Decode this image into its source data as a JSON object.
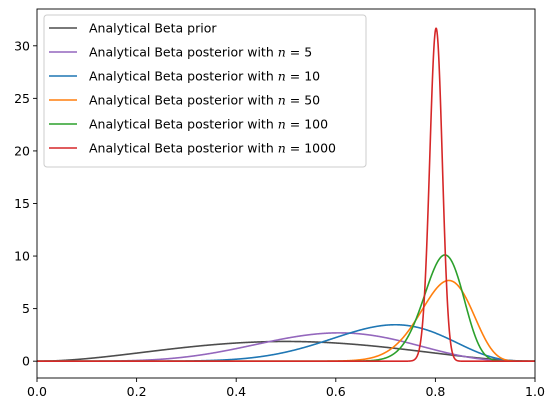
{
  "chart_data": {
    "type": "line",
    "title": "",
    "xlabel": "",
    "ylabel": "",
    "xlim": [
      0,
      1
    ],
    "ylim": [
      -1.6,
      33.5
    ],
    "xticks": [
      0.0,
      0.2,
      0.4,
      0.6,
      0.8,
      1.0
    ],
    "xtick_labels": [
      "0.0",
      "0.2",
      "0.4",
      "0.6",
      "0.8",
      "1.0"
    ],
    "yticks": [
      0,
      5,
      10,
      15,
      20,
      25,
      30
    ],
    "ytick_labels": [
      "0",
      "5",
      "10",
      "15",
      "20",
      "25",
      "30"
    ],
    "grid": false,
    "legend_position": "top-left",
    "series": [
      {
        "name": "Analytical Beta prior",
        "label_prefix": "Analytical Beta prior",
        "label_math": "",
        "color": "#4d4d4d",
        "distribution": "beta",
        "alpha": 3,
        "beta": 3
      },
      {
        "name": "Analytical Beta posterior with n = 5",
        "label_prefix": "Analytical Beta posterior with ",
        "label_math": "n = 5",
        "color": "#9467bd",
        "distribution": "beta",
        "alpha": 6.7,
        "beta": 4.7
      },
      {
        "name": "Analytical Beta posterior with n = 10",
        "label_prefix": "Analytical Beta posterior with ",
        "label_math": "n = 10",
        "color": "#1f77b4",
        "distribution": "beta",
        "alpha": 11,
        "beta": 4.9
      },
      {
        "name": "Analytical Beta posterior with n = 50",
        "label_prefix": "Analytical Beta posterior with ",
        "label_math": "n = 50",
        "color": "#ff7f0e",
        "distribution": "beta",
        "alpha": 44,
        "beta": 10
      },
      {
        "name": "Analytical Beta posterior with n = 100",
        "label_prefix": "Analytical Beta posterior with ",
        "label_math": "n = 100",
        "color": "#2ca02c",
        "distribution": "beta",
        "alpha": 78,
        "beta": 18
      },
      {
        "name": "Analytical Beta posterior with n = 1000",
        "label_prefix": "Analytical Beta posterior with ",
        "label_math": "n = 1000",
        "color": "#d62728",
        "distribution": "beta",
        "alpha": 804,
        "beta": 200
      }
    ]
  }
}
